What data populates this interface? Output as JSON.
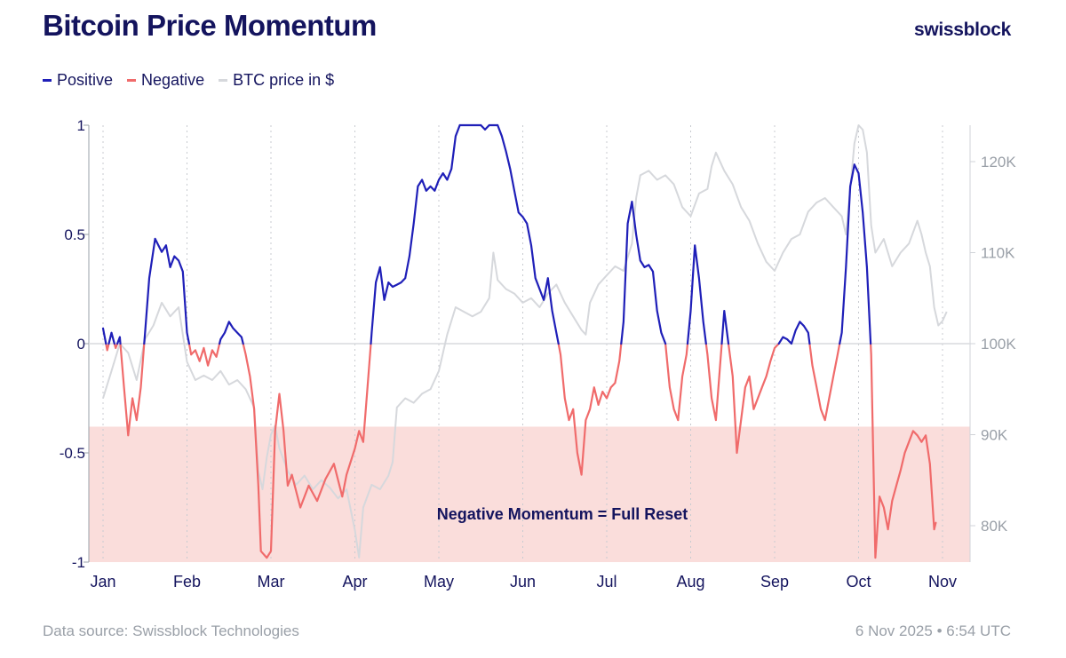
{
  "header": {
    "title": "Bitcoin Price Momentum",
    "brand": "swissblock"
  },
  "footer": {
    "source": "Data source: Swissblock Technologies",
    "timestamp": "6 Nov 2025 • 6:54 UTC"
  },
  "colors": {
    "positive": "#1f1fb8",
    "negative": "#f06b6b",
    "price": "#d6d8dc",
    "reset_zone": "#fadddb",
    "text": "#14145e",
    "axis_text": "#9aa0a8"
  },
  "chart_data": {
    "type": "line",
    "title": "Bitcoin Price Momentum",
    "legend": [
      {
        "name": "Positive",
        "color": "#1f1fb8"
      },
      {
        "name": "Negative",
        "color": "#f06b6b"
      },
      {
        "name": "BTC price in $",
        "color": "#d6d8dc"
      }
    ],
    "x_months": [
      "Jan",
      "Feb",
      "Mar",
      "Apr",
      "May",
      "Jun",
      "Jul",
      "Aug",
      "Sep",
      "Oct",
      "Nov"
    ],
    "x_range": [
      0,
      10.35
    ],
    "y_left": {
      "ticks": [
        1,
        0.5,
        0,
        -0.5,
        -1
      ],
      "tick_labels": [
        "1",
        "0.5",
        "0",
        "-0.5",
        "-1"
      ],
      "range": [
        -1,
        1
      ]
    },
    "y_right": {
      "ticks": [
        120000,
        110000,
        100000,
        90000,
        80000
      ],
      "tick_labels": [
        "120K",
        "110K",
        "100K",
        "90K",
        "80K"
      ],
      "range": [
        76000,
        124000
      ]
    },
    "reset_zone": {
      "y_from": -1,
      "y_to": -0.38
    },
    "annotation": "Negative Momentum = Full Reset",
    "momentum": [
      [
        0,
        0.07
      ],
      [
        0.05,
        -0.03
      ],
      [
        0.1,
        0.05
      ],
      [
        0.15,
        -0.02
      ],
      [
        0.2,
        0.03
      ],
      [
        0.25,
        -0.2
      ],
      [
        0.3,
        -0.42
      ],
      [
        0.35,
        -0.25
      ],
      [
        0.4,
        -0.35
      ],
      [
        0.45,
        -0.2
      ],
      [
        0.5,
        0.05
      ],
      [
        0.55,
        0.3
      ],
      [
        0.62,
        0.48
      ],
      [
        0.7,
        0.42
      ],
      [
        0.75,
        0.45
      ],
      [
        0.8,
        0.35
      ],
      [
        0.85,
        0.4
      ],
      [
        0.9,
        0.38
      ],
      [
        0.95,
        0.33
      ],
      [
        1.0,
        0.05
      ],
      [
        1.05,
        -0.05
      ],
      [
        1.1,
        -0.03
      ],
      [
        1.15,
        -0.08
      ],
      [
        1.2,
        -0.02
      ],
      [
        1.25,
        -0.1
      ],
      [
        1.3,
        -0.03
      ],
      [
        1.35,
        -0.06
      ],
      [
        1.4,
        0.02
      ],
      [
        1.45,
        0.05
      ],
      [
        1.5,
        0.1
      ],
      [
        1.55,
        0.07
      ],
      [
        1.6,
        0.05
      ],
      [
        1.65,
        0.03
      ],
      [
        1.7,
        -0.05
      ],
      [
        1.75,
        -0.15
      ],
      [
        1.8,
        -0.3
      ],
      [
        1.85,
        -0.65
      ],
      [
        1.88,
        -0.95
      ],
      [
        1.95,
        -0.98
      ],
      [
        2.0,
        -0.95
      ],
      [
        2.05,
        -0.4
      ],
      [
        2.1,
        -0.23
      ],
      [
        2.15,
        -0.4
      ],
      [
        2.2,
        -0.65
      ],
      [
        2.25,
        -0.6
      ],
      [
        2.35,
        -0.75
      ],
      [
        2.45,
        -0.65
      ],
      [
        2.55,
        -0.72
      ],
      [
        2.65,
        -0.62
      ],
      [
        2.75,
        -0.55
      ],
      [
        2.85,
        -0.7
      ],
      [
        2.9,
        -0.6
      ],
      [
        3.0,
        -0.48
      ],
      [
        3.05,
        -0.4
      ],
      [
        3.1,
        -0.45
      ],
      [
        3.15,
        -0.2
      ],
      [
        3.2,
        0.05
      ],
      [
        3.25,
        0.28
      ],
      [
        3.3,
        0.35
      ],
      [
        3.35,
        0.2
      ],
      [
        3.4,
        0.28
      ],
      [
        3.45,
        0.26
      ],
      [
        3.5,
        0.27
      ],
      [
        3.55,
        0.28
      ],
      [
        3.6,
        0.3
      ],
      [
        3.65,
        0.4
      ],
      [
        3.7,
        0.55
      ],
      [
        3.75,
        0.72
      ],
      [
        3.8,
        0.75
      ],
      [
        3.85,
        0.7
      ],
      [
        3.9,
        0.72
      ],
      [
        3.95,
        0.7
      ],
      [
        4.0,
        0.75
      ],
      [
        4.05,
        0.78
      ],
      [
        4.1,
        0.75
      ],
      [
        4.15,
        0.8
      ],
      [
        4.2,
        0.95
      ],
      [
        4.25,
        1.0
      ],
      [
        4.5,
        1.0
      ],
      [
        4.55,
        0.98
      ],
      [
        4.6,
        1.0
      ],
      [
        4.7,
        1.0
      ],
      [
        4.75,
        0.95
      ],
      [
        4.8,
        0.88
      ],
      [
        4.85,
        0.8
      ],
      [
        4.9,
        0.7
      ],
      [
        4.95,
        0.6
      ],
      [
        5.0,
        0.58
      ],
      [
        5.05,
        0.55
      ],
      [
        5.1,
        0.45
      ],
      [
        5.15,
        0.3
      ],
      [
        5.2,
        0.25
      ],
      [
        5.25,
        0.2
      ],
      [
        5.3,
        0.3
      ],
      [
        5.35,
        0.15
      ],
      [
        5.4,
        0.05
      ],
      [
        5.45,
        -0.05
      ],
      [
        5.5,
        -0.25
      ],
      [
        5.55,
        -0.35
      ],
      [
        5.6,
        -0.3
      ],
      [
        5.65,
        -0.5
      ],
      [
        5.7,
        -0.6
      ],
      [
        5.75,
        -0.35
      ],
      [
        5.8,
        -0.3
      ],
      [
        5.85,
        -0.2
      ],
      [
        5.9,
        -0.28
      ],
      [
        5.95,
        -0.22
      ],
      [
        6.0,
        -0.25
      ],
      [
        6.05,
        -0.2
      ],
      [
        6.1,
        -0.18
      ],
      [
        6.15,
        -0.08
      ],
      [
        6.2,
        0.1
      ],
      [
        6.25,
        0.55
      ],
      [
        6.3,
        0.65
      ],
      [
        6.35,
        0.5
      ],
      [
        6.4,
        0.38
      ],
      [
        6.45,
        0.35
      ],
      [
        6.5,
        0.36
      ],
      [
        6.55,
        0.33
      ],
      [
        6.6,
        0.15
      ],
      [
        6.65,
        0.05
      ],
      [
        6.7,
        0.0
      ],
      [
        6.75,
        -0.2
      ],
      [
        6.8,
        -0.3
      ],
      [
        6.85,
        -0.35
      ],
      [
        6.9,
        -0.15
      ],
      [
        6.95,
        -0.05
      ],
      [
        7.0,
        0.15
      ],
      [
        7.05,
        0.45
      ],
      [
        7.1,
        0.3
      ],
      [
        7.15,
        0.1
      ],
      [
        7.2,
        -0.05
      ],
      [
        7.25,
        -0.25
      ],
      [
        7.3,
        -0.35
      ],
      [
        7.35,
        -0.1
      ],
      [
        7.4,
        0.15
      ],
      [
        7.45,
        0.0
      ],
      [
        7.5,
        -0.15
      ],
      [
        7.55,
        -0.5
      ],
      [
        7.6,
        -0.35
      ],
      [
        7.65,
        -0.2
      ],
      [
        7.7,
        -0.15
      ],
      [
        7.75,
        -0.3
      ],
      [
        7.8,
        -0.25
      ],
      [
        7.85,
        -0.2
      ],
      [
        7.9,
        -0.15
      ],
      [
        7.95,
        -0.08
      ],
      [
        8.0,
        -0.02
      ],
      [
        8.05,
        0.0
      ],
      [
        8.1,
        0.03
      ],
      [
        8.15,
        0.02
      ],
      [
        8.2,
        0.0
      ],
      [
        8.25,
        0.06
      ],
      [
        8.3,
        0.1
      ],
      [
        8.35,
        0.08
      ],
      [
        8.4,
        0.05
      ],
      [
        8.45,
        -0.1
      ],
      [
        8.5,
        -0.2
      ],
      [
        8.55,
        -0.3
      ],
      [
        8.6,
        -0.35
      ],
      [
        8.65,
        -0.25
      ],
      [
        8.7,
        -0.15
      ],
      [
        8.75,
        -0.05
      ],
      [
        8.8,
        0.05
      ],
      [
        8.85,
        0.35
      ],
      [
        8.9,
        0.72
      ],
      [
        8.95,
        0.82
      ],
      [
        9.0,
        0.78
      ],
      [
        9.05,
        0.6
      ],
      [
        9.1,
        0.35
      ],
      [
        9.15,
        -0.05
      ],
      [
        9.2,
        -0.98
      ],
      [
        9.25,
        -0.7
      ],
      [
        9.3,
        -0.75
      ],
      [
        9.35,
        -0.85
      ],
      [
        9.4,
        -0.72
      ],
      [
        9.45,
        -0.65
      ],
      [
        9.5,
        -0.58
      ],
      [
        9.55,
        -0.5
      ],
      [
        9.6,
        -0.45
      ],
      [
        9.65,
        -0.4
      ],
      [
        9.7,
        -0.42
      ],
      [
        9.75,
        -0.45
      ],
      [
        9.8,
        -0.42
      ],
      [
        9.85,
        -0.55
      ],
      [
        9.9,
        -0.85
      ],
      [
        9.92,
        -0.82
      ]
    ],
    "btc_price": [
      [
        0,
        94000
      ],
      [
        0.1,
        97000
      ],
      [
        0.2,
        100000
      ],
      [
        0.3,
        99000
      ],
      [
        0.4,
        96000
      ],
      [
        0.5,
        100500
      ],
      [
        0.6,
        102000
      ],
      [
        0.7,
        104500
      ],
      [
        0.8,
        103000
      ],
      [
        0.9,
        104000
      ],
      [
        1.0,
        98000
      ],
      [
        1.1,
        96000
      ],
      [
        1.2,
        96500
      ],
      [
        1.3,
        96000
      ],
      [
        1.4,
        97000
      ],
      [
        1.5,
        95500
      ],
      [
        1.6,
        96000
      ],
      [
        1.7,
        95000
      ],
      [
        1.8,
        93000
      ],
      [
        1.85,
        86000
      ],
      [
        1.9,
        84000
      ],
      [
        1.95,
        87500
      ],
      [
        2.0,
        90000
      ],
      [
        2.05,
        91000
      ],
      [
        2.1,
        88500
      ],
      [
        2.2,
        86000
      ],
      [
        2.3,
        84500
      ],
      [
        2.4,
        85500
      ],
      [
        2.5,
        84000
      ],
      [
        2.6,
        85000
      ],
      [
        2.7,
        84200
      ],
      [
        2.8,
        83000
      ],
      [
        2.9,
        84000
      ],
      [
        3.0,
        79500
      ],
      [
        3.05,
        76500
      ],
      [
        3.1,
        82000
      ],
      [
        3.2,
        84500
      ],
      [
        3.3,
        84000
      ],
      [
        3.4,
        85500
      ],
      [
        3.45,
        87000
      ],
      [
        3.5,
        93000
      ],
      [
        3.6,
        94000
      ],
      [
        3.7,
        93500
      ],
      [
        3.8,
        94500
      ],
      [
        3.9,
        95000
      ],
      [
        4.0,
        97000
      ],
      [
        4.1,
        101000
      ],
      [
        4.2,
        104000
      ],
      [
        4.3,
        103500
      ],
      [
        4.4,
        103000
      ],
      [
        4.5,
        103500
      ],
      [
        4.6,
        105000
      ],
      [
        4.65,
        110000
      ],
      [
        4.7,
        107000
      ],
      [
        4.8,
        106000
      ],
      [
        4.9,
        105500
      ],
      [
        5.0,
        104500
      ],
      [
        5.1,
        105000
      ],
      [
        5.2,
        104000
      ],
      [
        5.3,
        105500
      ],
      [
        5.4,
        106500
      ],
      [
        5.5,
        104500
      ],
      [
        5.6,
        103000
      ],
      [
        5.7,
        101500
      ],
      [
        5.75,
        101000
      ],
      [
        5.8,
        104500
      ],
      [
        5.9,
        106500
      ],
      [
        6.0,
        107500
      ],
      [
        6.05,
        108000
      ],
      [
        6.1,
        108500
      ],
      [
        6.2,
        108000
      ],
      [
        6.3,
        111000
      ],
      [
        6.35,
        116000
      ],
      [
        6.4,
        118500
      ],
      [
        6.5,
        119000
      ],
      [
        6.6,
        118000
      ],
      [
        6.7,
        118500
      ],
      [
        6.8,
        117500
      ],
      [
        6.9,
        115000
      ],
      [
        7.0,
        114000
      ],
      [
        7.1,
        116500
      ],
      [
        7.2,
        117000
      ],
      [
        7.25,
        119500
      ],
      [
        7.3,
        121000
      ],
      [
        7.4,
        119000
      ],
      [
        7.5,
        117500
      ],
      [
        7.6,
        115000
      ],
      [
        7.7,
        113500
      ],
      [
        7.8,
        111000
      ],
      [
        7.9,
        109000
      ],
      [
        8.0,
        108000
      ],
      [
        8.1,
        110000
      ],
      [
        8.2,
        111500
      ],
      [
        8.3,
        112000
      ],
      [
        8.4,
        114500
      ],
      [
        8.5,
        115500
      ],
      [
        8.6,
        116000
      ],
      [
        8.7,
        115000
      ],
      [
        8.8,
        114000
      ],
      [
        8.85,
        112000
      ],
      [
        8.9,
        117000
      ],
      [
        8.95,
        122000
      ],
      [
        9.0,
        124000
      ],
      [
        9.05,
        123500
      ],
      [
        9.1,
        121000
      ],
      [
        9.15,
        113000
      ],
      [
        9.2,
        110000
      ],
      [
        9.3,
        111500
      ],
      [
        9.4,
        108500
      ],
      [
        9.5,
        110000
      ],
      [
        9.6,
        111000
      ],
      [
        9.7,
        113500
      ],
      [
        9.75,
        112000
      ],
      [
        9.8,
        110000
      ],
      [
        9.85,
        108500
      ],
      [
        9.9,
        104000
      ],
      [
        9.95,
        102000
      ],
      [
        10.0,
        102500
      ],
      [
        10.05,
        103500
      ]
    ]
  }
}
